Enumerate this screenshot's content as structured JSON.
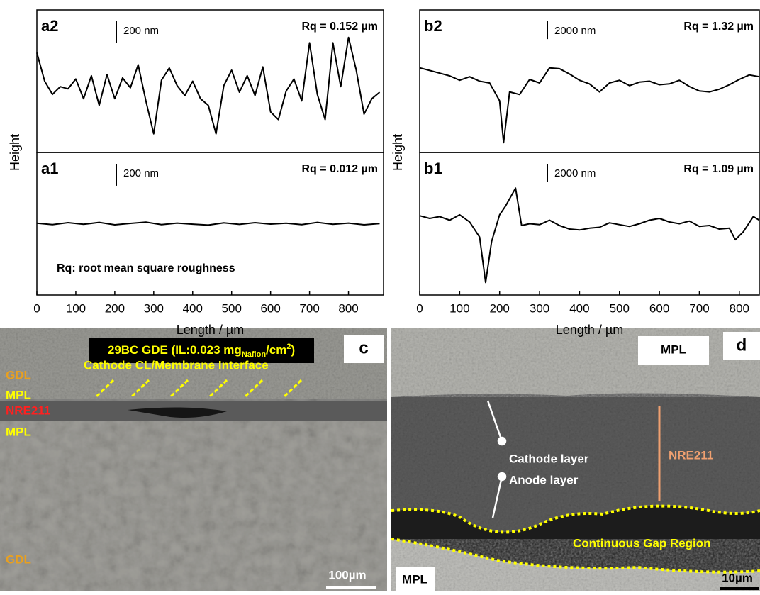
{
  "chart_data": [
    {
      "type": "line",
      "panel": "a2",
      "annotation": "Rq = 0.152 µm",
      "scale_bar": {
        "value": 200,
        "label": "200 nm"
      },
      "color": "#000000",
      "x": [
        0,
        20,
        40,
        60,
        80,
        100,
        120,
        140,
        160,
        180,
        200,
        220,
        240,
        260,
        280,
        300,
        320,
        340,
        360,
        380,
        400,
        420,
        440,
        460,
        480,
        500,
        520,
        540,
        560,
        580,
        600,
        620,
        640,
        660,
        680,
        700,
        720,
        740,
        760,
        780,
        800,
        820,
        840,
        860,
        880
      ],
      "values": [
        360,
        100,
        -20,
        50,
        30,
        120,
        -60,
        150,
        -120,
        160,
        -60,
        130,
        40,
        250,
        -80,
        -380,
        110,
        220,
        60,
        -30,
        100,
        -60,
        -120,
        -380,
        60,
        200,
        0,
        150,
        -30,
        230,
        -180,
        -250,
        10,
        120,
        -80,
        450,
        -20,
        -250,
        450,
        50,
        500,
        200,
        -200,
        -60,
        0
      ],
      "xlim": [
        0,
        890
      ],
      "ylim": [
        -550,
        750
      ]
    },
    {
      "type": "line",
      "panel": "a1",
      "annotation": "Rq = 0.012 µm",
      "note": "Rq: root mean square roughness",
      "scale_bar": {
        "value": 200,
        "label": "200 nm"
      },
      "color": "#000000",
      "x": [
        0,
        40,
        80,
        120,
        160,
        200,
        240,
        280,
        320,
        360,
        400,
        440,
        480,
        520,
        560,
        600,
        640,
        680,
        720,
        760,
        800,
        840,
        880
      ],
      "values": [
        5,
        -8,
        10,
        -5,
        12,
        -10,
        3,
        15,
        -8,
        6,
        -4,
        -12,
        8,
        -6,
        10,
        -3,
        5,
        -8,
        12,
        -5,
        6,
        -10,
        2
      ],
      "xlim": [
        0,
        890
      ],
      "ylim": [
        -650,
        650
      ],
      "xticks": [
        0,
        100,
        200,
        300,
        400,
        500,
        600,
        700,
        800
      ],
      "xlabel": "Length / µm",
      "ylabel": "Height"
    },
    {
      "type": "line",
      "panel": "b2",
      "annotation": "Rq = 1.32 µm",
      "scale_bar": {
        "value": 2000,
        "label": "2000 nm"
      },
      "color": "#000000",
      "x": [
        0,
        25,
        50,
        75,
        100,
        125,
        150,
        175,
        200,
        210,
        225,
        250,
        275,
        300,
        325,
        350,
        375,
        400,
        425,
        450,
        475,
        500,
        525,
        550,
        575,
        600,
        625,
        650,
        675,
        700,
        725,
        750,
        775,
        800,
        825,
        850
      ],
      "values": [
        1200,
        900,
        600,
        300,
        -200,
        200,
        -300,
        -500,
        -2500,
        -7200,
        -1500,
        -1800,
        -100,
        -500,
        1200,
        1100,
        500,
        -200,
        -600,
        -1500,
        -500,
        -200,
        -800,
        -400,
        -300,
        -700,
        -600,
        -200,
        -900,
        -1400,
        -1500,
        -1200,
        -700,
        -100,
        400,
        200
      ],
      "xlim": [
        0,
        850
      ],
      "ylim": [
        -8300,
        7700
      ]
    },
    {
      "type": "line",
      "panel": "b1",
      "annotation": "Rq = 1.09 µm",
      "scale_bar": {
        "value": 2000,
        "label": "2000 nm"
      },
      "color": "#000000",
      "x": [
        0,
        25,
        50,
        75,
        100,
        125,
        150,
        165,
        180,
        200,
        215,
        240,
        255,
        275,
        300,
        325,
        350,
        375,
        400,
        425,
        450,
        475,
        500,
        525,
        550,
        575,
        600,
        625,
        650,
        675,
        700,
        725,
        750,
        775,
        790,
        810,
        835,
        850
      ],
      "values": [
        900,
        600,
        800,
        400,
        1000,
        200,
        -1500,
        -6600,
        -2000,
        1000,
        2000,
        4000,
        -200,
        0,
        -100,
        400,
        -200,
        -600,
        -700,
        -500,
        -400,
        100,
        -100,
        -300,
        0,
        400,
        600,
        200,
        0,
        300,
        -300,
        -200,
        -600,
        -500,
        -1800,
        -900,
        800,
        400
      ],
      "xlim": [
        0,
        850
      ],
      "ylim": [
        -8000,
        8000
      ],
      "xticks": [
        0,
        100,
        200,
        300,
        400,
        500,
        600,
        700,
        800
      ],
      "xlabel": "Length / µm",
      "ylabel": "Height"
    }
  ],
  "images": {
    "c": {
      "panel": "c",
      "title": {
        "main": "29BC GDE (IL:0.023 mg",
        "sub": "Nafion",
        "mid": "/cm",
        "sup": "2",
        "end": ")"
      },
      "labels": [
        "GDL",
        "Cathode CL/Membrane Interface",
        "MPL",
        "NRE211",
        "MPL",
        "GDL"
      ],
      "scale": "100µm"
    },
    "d": {
      "panel": "d",
      "labels": [
        "MPL",
        "Cathode layer",
        "NRE211",
        "Anode layer",
        "Continuous Gap Region",
        "MPL"
      ],
      "scale": "10µm"
    }
  }
}
